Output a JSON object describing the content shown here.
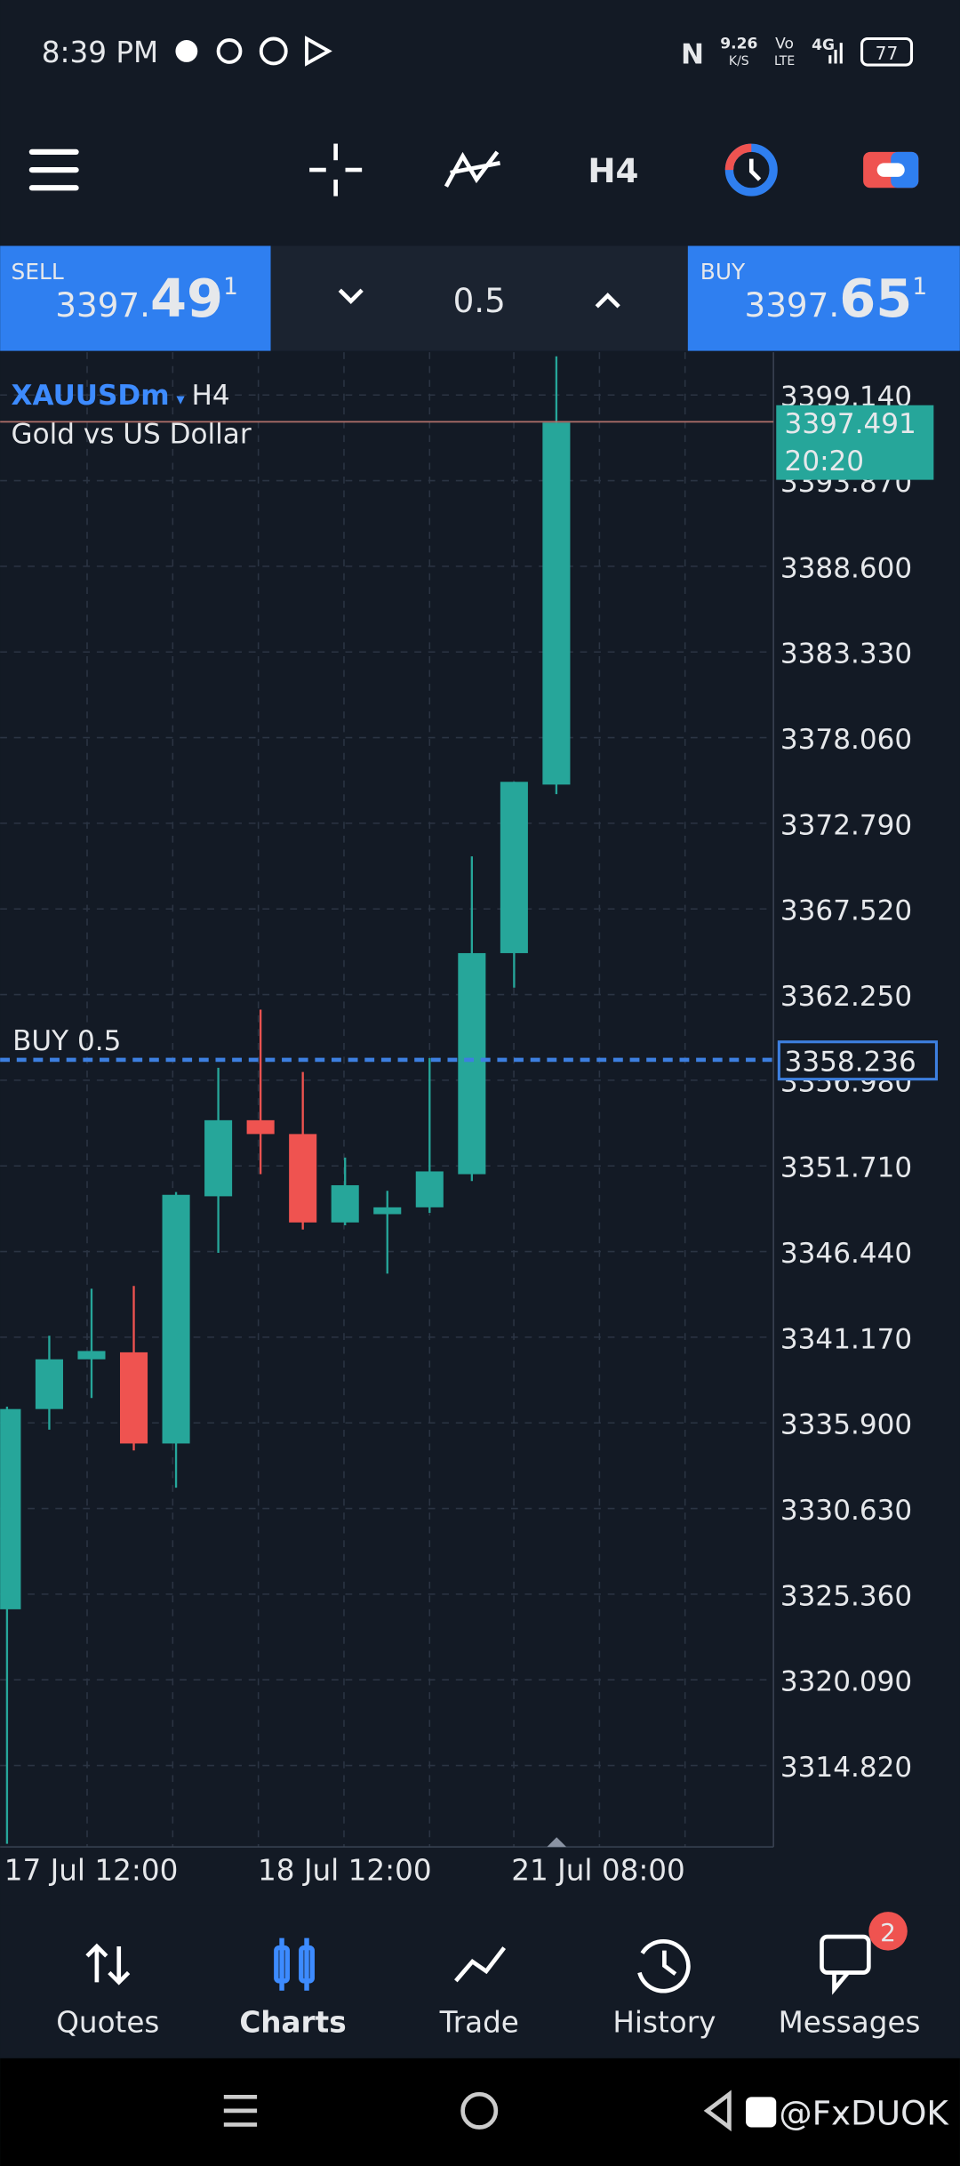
{
  "status_bar": {
    "time": "8:39 PM",
    "net_speed": "9.26",
    "net_unit": "K/S",
    "volte_top": "Vo",
    "volte_bottom": "LTE",
    "network": "4G",
    "battery": "77"
  },
  "toolbar": {
    "timeframe": "H4"
  },
  "trade_panel": {
    "sell": {
      "label": "SELL",
      "price_main": "3397.",
      "price_big": "49",
      "price_sup": "1"
    },
    "volume": "0.5",
    "buy": {
      "label": "BUY",
      "price_main": "3397.",
      "price_big": "65",
      "price_sup": "1"
    }
  },
  "chart_data": {
    "type": "candlestick",
    "symbol": "XAUUSDm",
    "timeframe": "H4",
    "description": "Gold vs US Dollar",
    "categories": [
      "17 Jul 12:00",
      null,
      null,
      null,
      null,
      null,
      "18 Jul 12:00",
      null,
      null,
      null,
      null,
      null,
      "21 Jul 08:00",
      null
    ],
    "open": [
      3324.43,
      3336.75,
      3339.81,
      3340.24,
      3334.63,
      3349.84,
      3354.52,
      3353.67,
      3348.23,
      3348.74,
      3349.16,
      3351.2,
      3364.8,
      3375.17
    ],
    "high": [
      3336.9,
      3341.26,
      3344.15,
      3344.32,
      3350.1,
      3357.75,
      3361.32,
      3357.49,
      3352.22,
      3350.18,
      3358.34,
      3370.75,
      3375.34,
      3401.52
    ],
    "low": [
      3310.0,
      3335.48,
      3337.43,
      3334.2,
      3331.91,
      3346.36,
      3351.2,
      3347.8,
      3348.06,
      3345.08,
      3348.82,
      3350.78,
      3362.68,
      3374.58
    ],
    "close": [
      3336.75,
      3339.81,
      3340.32,
      3334.63,
      3349.93,
      3354.52,
      3353.67,
      3348.23,
      3350.52,
      3349.16,
      3351.37,
      3364.8,
      3375.34,
      3397.44
    ],
    "up_color": "#26a69a",
    "down_color": "#ef5350",
    "ylim": [
      3309.81,
      3401.77
    ],
    "yticks": [
      {
        "value": 3399.14,
        "label": "3399.140"
      },
      {
        "value": 3393.87,
        "label": "3393.870"
      },
      {
        "value": 3388.6,
        "label": "3388.600"
      },
      {
        "value": 3383.33,
        "label": "3383.330"
      },
      {
        "value": 3378.06,
        "label": "3378.060"
      },
      {
        "value": 3372.79,
        "label": "3372.790"
      },
      {
        "value": 3367.52,
        "label": "3367.520"
      },
      {
        "value": 3362.25,
        "label": "3362.250"
      },
      {
        "value": 3356.98,
        "label": "3356.980"
      },
      {
        "value": 3351.71,
        "label": "3351.710"
      },
      {
        "value": 3346.44,
        "label": "3346.440"
      },
      {
        "value": 3341.17,
        "label": "3341.170"
      },
      {
        "value": 3335.9,
        "label": "3335.900"
      },
      {
        "value": 3330.63,
        "label": "3330.630"
      },
      {
        "value": 3325.36,
        "label": "3325.360"
      },
      {
        "value": 3320.09,
        "label": "3320.090"
      },
      {
        "value": 3314.82,
        "label": "3314.820"
      }
    ],
    "grid": true,
    "current_price": 3397.491,
    "current_time": "20:20",
    "order": {
      "label": "BUY 0.5",
      "price": 3358.236
    }
  },
  "bottom_nav": {
    "items": [
      "Quotes",
      "Charts",
      "Trade",
      "History",
      "Messages"
    ],
    "active": "Charts",
    "messages_badge": "2"
  },
  "watermark": "@FxDUOK"
}
